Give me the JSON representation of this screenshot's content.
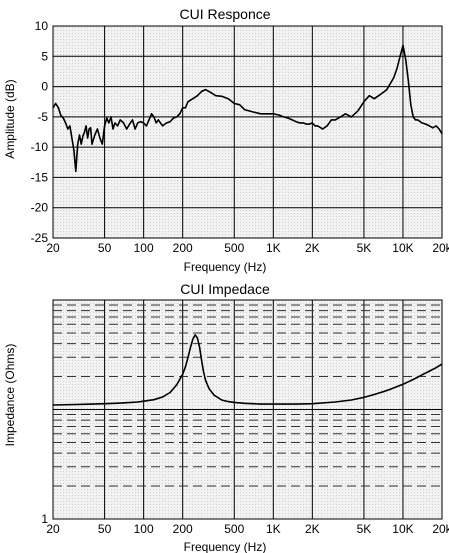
{
  "chart_data": [
    {
      "type": "line",
      "title": "CUI Responce",
      "xlabel": "Frequency (Hz)",
      "ylabel": "Amplitude (dB)",
      "xscale": "log",
      "xlim": [
        20,
        20000
      ],
      "ylim": [
        -25,
        10
      ],
      "grid": true,
      "xticks": [
        {
          "value": 20,
          "label": "20"
        },
        {
          "value": 50,
          "label": "50"
        },
        {
          "value": 100,
          "label": "100"
        },
        {
          "value": 200,
          "label": "200"
        },
        {
          "value": 500,
          "label": "500"
        },
        {
          "value": 1000,
          "label": "1K"
        },
        {
          "value": 2000,
          "label": "2K"
        },
        {
          "value": 5000,
          "label": "5K"
        },
        {
          "value": 10000,
          "label": "10K"
        },
        {
          "value": 20000,
          "label": "20k"
        }
      ],
      "yticks": [
        {
          "value": 10,
          "label": "10"
        },
        {
          "value": 5,
          "label": "5"
        },
        {
          "value": 0,
          "label": "0"
        },
        {
          "value": -5,
          "label": "-5"
        },
        {
          "value": -10,
          "label": "-10"
        },
        {
          "value": -15,
          "label": "-15"
        },
        {
          "value": -20,
          "label": "-20"
        },
        {
          "value": -25,
          "label": "-25"
        }
      ],
      "series": [
        {
          "color": "#000000",
          "x": [
            20,
            21,
            22,
            23,
            24,
            25,
            26,
            27,
            28,
            29,
            30,
            31,
            32,
            33,
            34,
            35,
            36,
            37,
            38,
            39,
            40,
            42,
            44,
            46,
            48,
            50,
            52,
            54,
            56,
            58,
            60,
            63,
            66,
            70,
            74,
            78,
            82,
            86,
            90,
            95,
            100,
            105,
            110,
            115,
            120,
            125,
            130,
            140,
            150,
            160,
            170,
            180,
            190,
            200,
            210,
            220,
            240,
            260,
            280,
            300,
            330,
            360,
            400,
            450,
            500,
            550,
            600,
            700,
            800,
            900,
            1000,
            1100,
            1200,
            1300,
            1400,
            1500,
            1600,
            1700,
            1800,
            1900,
            2000,
            2100,
            2200,
            2400,
            2600,
            2800,
            3000,
            3300,
            3600,
            4000,
            4500,
            5000,
            5500,
            6000,
            6500,
            7000,
            7500,
            8000,
            8500,
            9000,
            9500,
            10000,
            10500,
            11000,
            11500,
            12000,
            12500,
            13000,
            14000,
            15000,
            16000,
            17000,
            18000,
            19000,
            20000
          ],
          "y": [
            -3.5,
            -2.8,
            -3.5,
            -4.8,
            -5.2,
            -6.0,
            -7.0,
            -6.5,
            -8.5,
            -10.5,
            -14.0,
            -9.5,
            -8.0,
            -9.5,
            -8.2,
            -7.5,
            -6.5,
            -8.5,
            -7.0,
            -6.8,
            -9.5,
            -8.0,
            -7.0,
            -8.5,
            -9.5,
            -6.5,
            -5.2,
            -6.0,
            -5.0,
            -7.0,
            -6.0,
            -6.5,
            -5.5,
            -6.0,
            -7.0,
            -6.2,
            -5.5,
            -7.0,
            -6.0,
            -5.8,
            -6.0,
            -6.5,
            -5.5,
            -4.5,
            -5.0,
            -6.0,
            -5.5,
            -6.5,
            -6.0,
            -5.8,
            -5.2,
            -5.0,
            -4.5,
            -3.5,
            -3.5,
            -2.5,
            -2.0,
            -1.5,
            -0.8,
            -0.5,
            -1.0,
            -1.5,
            -1.6,
            -2.0,
            -2.8,
            -3.0,
            -3.8,
            -4.2,
            -4.5,
            -4.5,
            -4.5,
            -4.7,
            -5.0,
            -5.2,
            -5.5,
            -5.8,
            -6.0,
            -6.0,
            -6.2,
            -6.2,
            -6.0,
            -6.5,
            -6.5,
            -7.0,
            -6.5,
            -5.5,
            -5.5,
            -5.0,
            -4.5,
            -5.0,
            -4.0,
            -2.5,
            -1.5,
            -2.0,
            -1.5,
            -1.0,
            -0.5,
            0.5,
            1.5,
            3.0,
            5.0,
            6.8,
            4.5,
            1.0,
            -3.0,
            -5.0,
            -5.5,
            -5.5,
            -6.0,
            -6.2,
            -6.5,
            -6.8,
            -6.5,
            -7.0,
            -7.8
          ]
        }
      ]
    },
    {
      "type": "line",
      "title": "CUI Impedace",
      "xlabel": "Frequency (Hz)",
      "ylabel": "Impedance (Ohms)",
      "xscale": "log",
      "yscale": "log",
      "xlim": [
        20,
        20000
      ],
      "ylim": [
        1,
        100
      ],
      "grid": true,
      "xticks": [
        {
          "value": 20,
          "label": "20"
        },
        {
          "value": 50,
          "label": "50"
        },
        {
          "value": 100,
          "label": "100"
        },
        {
          "value": 200,
          "label": "200"
        },
        {
          "value": 500,
          "label": "500"
        },
        {
          "value": 1000,
          "label": "1K"
        },
        {
          "value": 2000,
          "label": "2K"
        },
        {
          "value": 5000,
          "label": "5K"
        },
        {
          "value": 10000,
          "label": "10K"
        },
        {
          "value": 20000,
          "label": "20k"
        }
      ],
      "yticks": [
        {
          "value": 1,
          "label": "1"
        }
      ],
      "series": [
        {
          "color": "#000000",
          "x": [
            20,
            30,
            40,
            50,
            60,
            70,
            80,
            90,
            100,
            120,
            140,
            160,
            180,
            200,
            210,
            220,
            230,
            240,
            250,
            260,
            270,
            280,
            290,
            300,
            320,
            350,
            400,
            450,
            500,
            600,
            700,
            800,
            1000,
            1500,
            2000,
            3000,
            4000,
            5000,
            6000,
            7000,
            8000,
            10000,
            12000,
            14000,
            16000,
            18000,
            20000
          ],
          "y": [
            11.0,
            11.1,
            11.2,
            11.3,
            11.4,
            11.5,
            11.6,
            11.7,
            11.9,
            12.3,
            13.0,
            14.3,
            16.8,
            21.0,
            24.5,
            30.0,
            37.0,
            44.0,
            48.0,
            45.0,
            37.0,
            28.0,
            22.0,
            18.5,
            15.5,
            13.5,
            12.2,
            11.8,
            11.6,
            11.4,
            11.3,
            11.2,
            11.2,
            11.2,
            11.3,
            11.7,
            12.2,
            12.9,
            13.7,
            14.5,
            15.3,
            17.0,
            18.8,
            20.7,
            22.4,
            24.1,
            26.0
          ]
        }
      ]
    }
  ]
}
